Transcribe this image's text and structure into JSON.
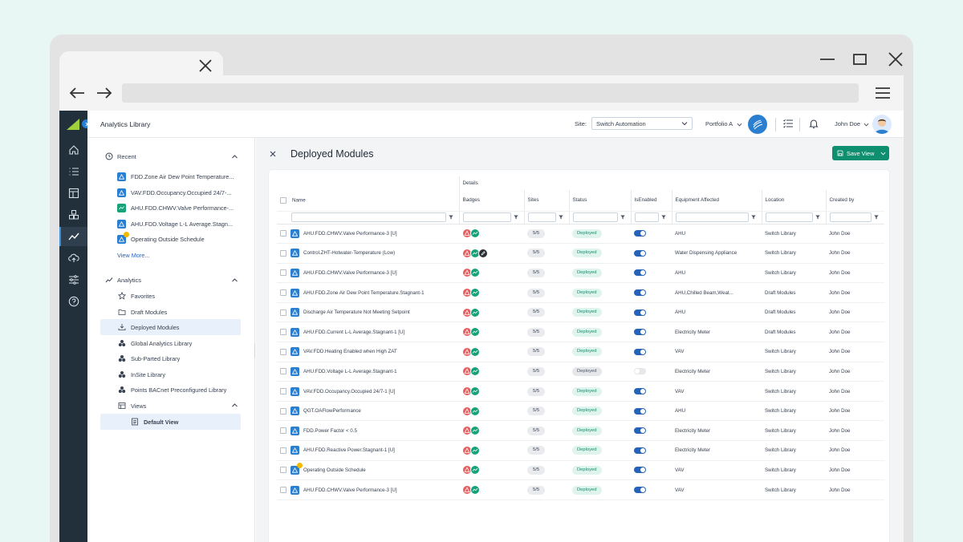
{
  "app": {
    "title": "Analytics Library"
  },
  "topbar": {
    "site_label": "Site:",
    "site_value": "Switch Automation",
    "portfolio": "Portfolio A",
    "user": "John Doe"
  },
  "sidebar": {
    "recent_title": "Recent",
    "recent_items": [
      {
        "label": "FDD.Zone Air Dew Point Temperature...",
        "icon": "alert-icon"
      },
      {
        "label": "VAV.FDD.Occupancy.Occupied 24/7-...",
        "icon": "alert-icon"
      },
      {
        "label": "AHU.FDD.CHWV.Valve Performance-...",
        "icon": "trend-icon"
      },
      {
        "label": "AHU.FDD.Voltage L-L Average.Stagn...",
        "icon": "alert-icon"
      },
      {
        "label": "Operating Outside Schedule",
        "icon": "alert-star-icon"
      }
    ],
    "view_more": "View More...",
    "analytics_title": "Analytics",
    "library_items": [
      {
        "label": "Favorites",
        "icon": "star-icon"
      },
      {
        "label": "Draft Modules",
        "icon": "folder-icon"
      },
      {
        "label": "Deployed Modules",
        "icon": "download-icon"
      },
      {
        "label": "Global Analytics Library",
        "icon": "cubes-icon"
      },
      {
        "label": "Sub-Parted Library",
        "icon": "cubes-icon"
      },
      {
        "label": "InSite Library",
        "icon": "cubes-icon"
      },
      {
        "label": "Points BACnet Preconfigured Library",
        "icon": "cubes-icon"
      },
      {
        "label": "Views",
        "icon": "views-icon"
      },
      {
        "label": "Default View",
        "icon": "view-icon"
      }
    ]
  },
  "main": {
    "title": "Deployed Modules",
    "save_view": "Save View",
    "group_header": "Details",
    "columns": [
      "Name",
      "Badges",
      "Sites",
      "Status",
      "IsEnabled",
      "Equipment Affected",
      "Location",
      "Created by"
    ],
    "rows": [
      {
        "name": "AHU.FDD.CHWV.Valve Performance-3 [U]",
        "badges": [
          "red",
          "green"
        ],
        "sites": "5/5",
        "status": "Deployed",
        "enabled": true,
        "equipment": "AHU",
        "location": "Switch Library",
        "created_by": "John Doe"
      },
      {
        "name": "Control.ZHT-Hotwater-Temperature (Low)",
        "badges": [
          "red",
          "green",
          "dark"
        ],
        "sites": "5/5",
        "status": "Deployed",
        "enabled": true,
        "equipment": "Water Dispensing Appliance",
        "location": "Switch Library",
        "created_by": "John Doe"
      },
      {
        "name": "AHU.FDD.CHWV.Valve Performance-3 [U]",
        "badges": [
          "red",
          "green"
        ],
        "sites": "5/5",
        "status": "Deployed",
        "enabled": true,
        "equipment": "AHU",
        "location": "Switch Library",
        "created_by": "John Doe"
      },
      {
        "name": "AHU.FDD.Zone Air Dew Point Temperature.Stagnant-1",
        "badges": [
          "red",
          "green"
        ],
        "sites": "5/5",
        "status": "Deployed",
        "enabled": true,
        "equipment": "AHU,Chilled Beam,Weat...",
        "location": "Draft Modules",
        "created_by": "John Doe"
      },
      {
        "name": "Discharge Air Temperature Not Meeting Setpoint",
        "badges": [
          "red",
          "green"
        ],
        "sites": "5/5",
        "status": "Deployed",
        "enabled": true,
        "equipment": "AHU",
        "location": "Draft Modules",
        "created_by": "John Doe"
      },
      {
        "name": "AHU.FDD.Current L-L Average.Stagnant-1 [U]",
        "badges": [
          "red",
          "green"
        ],
        "sites": "5/5",
        "status": "Deployed",
        "enabled": true,
        "equipment": "Electricity Meter",
        "location": "Draft Modules",
        "created_by": "John Doe"
      },
      {
        "name": "VAV.FDD.Heating Enabled when High ZAT",
        "badges": [
          "red",
          "green"
        ],
        "sites": "5/5",
        "status": "Deployed",
        "enabled": true,
        "equipment": "VAV",
        "location": "Switch Library",
        "created_by": "John Doe"
      },
      {
        "name": "AHU.FDD.Voltage L-L Average.Stagnant-1",
        "badges": [
          "red",
          "green"
        ],
        "sites": "5/5",
        "status": "Deployed",
        "enabled": false,
        "equipment": "Electricity Meter",
        "location": "Switch Library",
        "created_by": "John Doe"
      },
      {
        "name": "VAV.FDD.Occupancy.Occupied 24/7-1 [U]",
        "badges": [
          "red",
          "green"
        ],
        "sites": "5/5",
        "status": "Deployed",
        "enabled": true,
        "equipment": "VAV",
        "location": "Switch Library",
        "created_by": "John Doe"
      },
      {
        "name": "QGT.OAFlowPerformance",
        "badges": [
          "red",
          "green"
        ],
        "sites": "5/5",
        "status": "Deployed",
        "enabled": true,
        "equipment": "AHU",
        "location": "Switch Library",
        "created_by": "John Doe"
      },
      {
        "name": "FDD.Power Factor < 0.5",
        "badges": [
          "red",
          "green"
        ],
        "sites": "5/5",
        "status": "Deployed",
        "enabled": true,
        "equipment": "Electricity Meter",
        "location": "Switch Library",
        "created_by": "John Doe"
      },
      {
        "name": "AHU.FDD.Reactive Power.Stagnant-1 [U]",
        "badges": [
          "red",
          "green"
        ],
        "sites": "5/5",
        "status": "Deployed",
        "enabled": true,
        "equipment": "Electricity Meter",
        "location": "Switch Library",
        "created_by": "John Doe"
      },
      {
        "name": "Operating Outside Schedule",
        "badges": [
          "red",
          "green"
        ],
        "sites": "5/5",
        "status": "Deployed",
        "enabled": true,
        "equipment": "VAV",
        "location": "Switch Library",
        "created_by": "John Doe",
        "starred": true
      },
      {
        "name": "AHU.FDD.CHWV.Valve Performance-3 [U]",
        "badges": [
          "red",
          "green"
        ],
        "sites": "5/5",
        "status": "Deployed",
        "enabled": true,
        "equipment": "VAV",
        "location": "Switch Library",
        "created_by": "John Doe"
      }
    ]
  },
  "colors": {
    "accent": "#0e8f6f",
    "brand_blue": "#2b7fd0",
    "rail": "#22303c",
    "badge_red": "#e85d5d",
    "badge_green": "#16a37a"
  }
}
